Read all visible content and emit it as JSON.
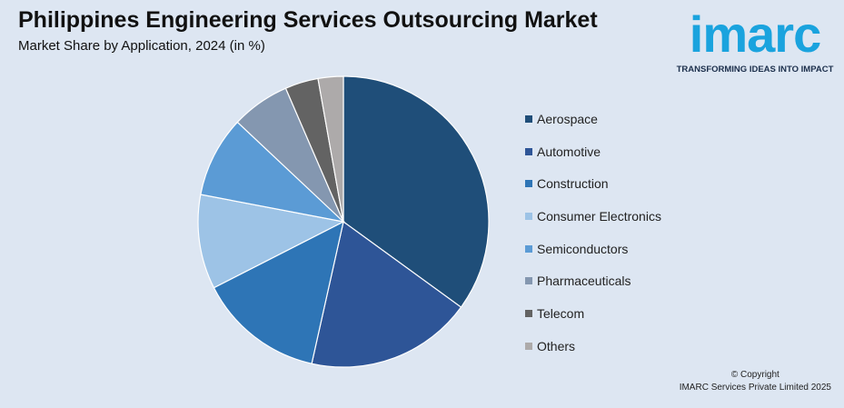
{
  "header": {
    "title": "Philippines Engineering Services Outsourcing Market",
    "subtitle": "Market Share by Application, 2024 (in %)"
  },
  "logo": {
    "wordmark": "imarc",
    "tagline": "TRANSFORMING IDEAS INTO IMPACT",
    "color": "#1aa3de"
  },
  "footer": {
    "copyright": "© Copyright",
    "company": "IMARC Services Private Limited 2025"
  },
  "chart_data": {
    "type": "pie",
    "title": "",
    "legend_position": "right",
    "start_angle_deg": 0,
    "direction": "clockwise",
    "slices": [
      {
        "label": "Aerospace",
        "value": 35.0,
        "color": "#1f4e79"
      },
      {
        "label": "Automotive",
        "value": 18.5,
        "color": "#2e5597"
      },
      {
        "label": "Construction",
        "value": 14.0,
        "color": "#2e75b6"
      },
      {
        "label": "Consumer Electronics",
        "value": 10.5,
        "color": "#9dc3e6"
      },
      {
        "label": "Semiconductors",
        "value": 9.0,
        "color": "#5b9bd5"
      },
      {
        "label": "Pharmaceuticals",
        "value": 6.5,
        "color": "#8497b0"
      },
      {
        "label": "Telecom",
        "value": 3.7,
        "color": "#636363"
      },
      {
        "label": "Others",
        "value": 2.8,
        "color": "#adaaaa"
      }
    ]
  }
}
